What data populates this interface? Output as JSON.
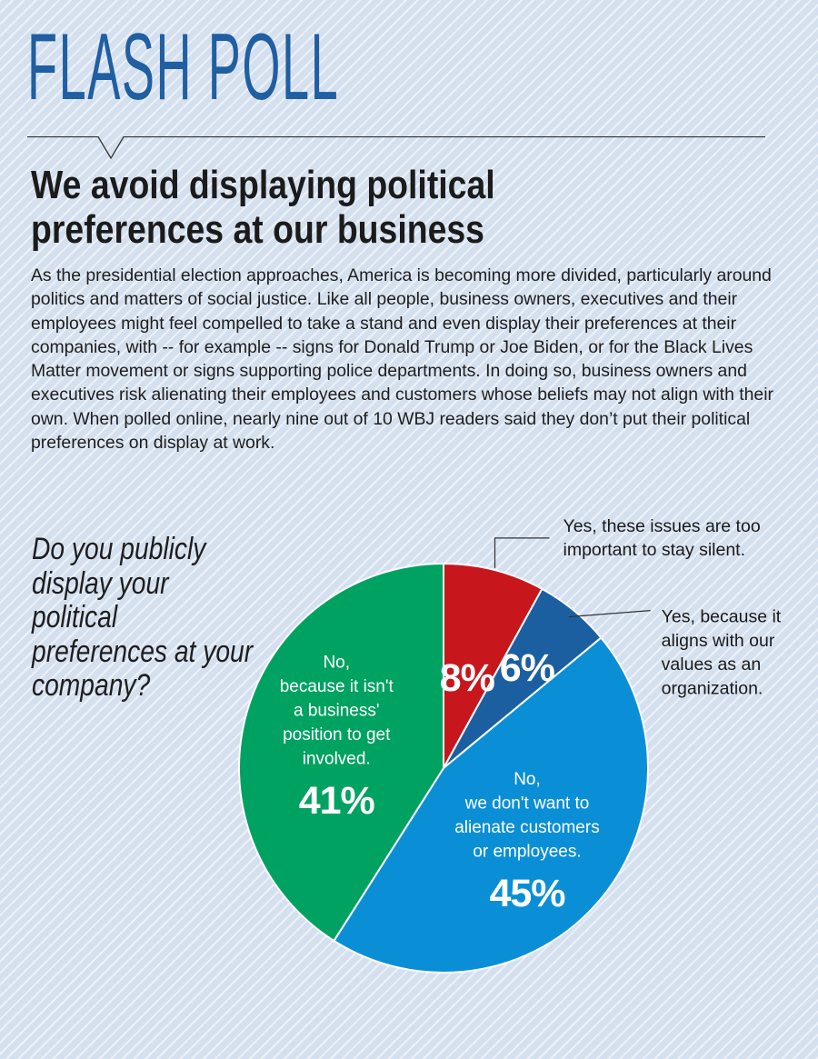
{
  "masthead": "FLASH POLL",
  "headline": "We avoid displaying political preferences at our business",
  "intro": "As the presidential election approaches, America is becoming more divided, particularly around politics and matters of social justice. Like all people, business owners, executives and their employees might feel compelled to take a stand and even display their preferences at their companies, with -- for example -- signs for Donald Trump or Joe Biden, or for the Black Lives Matter movement or signs supporting police departments. In doing so, business owners and executives risk alienating their employees and customers whose beliefs may not align with their own. When polled online, nearly nine out of 10 WBJ readers said they don’t put their political preferences on display at work.",
  "question": "Do you publicly display your political preferences at your company?",
  "chart_data": {
    "type": "pie",
    "slices": [
      {
        "label": "Yes, these issues are too important to stay silent.",
        "value": 8,
        "display": "8%",
        "color": "#c8161d"
      },
      {
        "label": "Yes, because it aligns with our values as an organization.",
        "value": 6,
        "display": "6%",
        "color": "#1b5fa0"
      },
      {
        "label": "No, we don't want to alienate customers or employees.",
        "value": 45,
        "display": "45%",
        "color": "#0a8fd6"
      },
      {
        "label": "No, because it isn't a business' position to get involved.",
        "value": 41,
        "display": "41%",
        "color": "#00a261"
      }
    ]
  }
}
